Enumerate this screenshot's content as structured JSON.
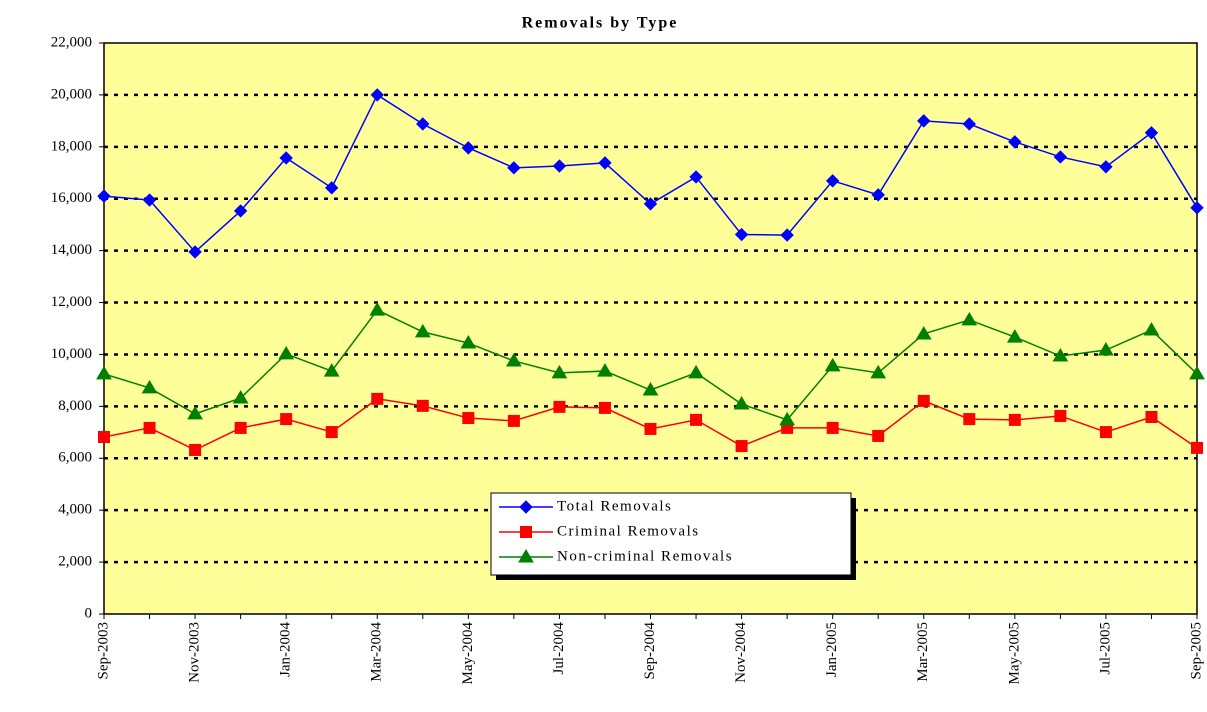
{
  "chart_data": {
    "type": "line",
    "title": "Removals by Type",
    "categories": [
      "Sep-2003",
      null,
      "Nov-2003",
      null,
      "Jan-2004",
      null,
      "Mar-2004",
      null,
      "May-2004",
      null,
      "Jul-2004",
      null,
      "Sep-2004",
      null,
      "Nov-2004",
      null,
      "Jan-2005",
      null,
      "Mar-2005",
      null,
      "May-2005",
      null,
      "Jul-2005",
      null,
      "Sep-2005"
    ],
    "series": [
      {
        "name": "Total Removals",
        "color": "#0000ff",
        "marker": "diamond",
        "values": [
          16100,
          15950,
          13950,
          15530,
          17570,
          16420,
          20000,
          18880,
          17960,
          17190,
          17260,
          17380,
          15800,
          16840,
          14620,
          14600,
          16690,
          16150,
          19000,
          18880,
          18190,
          17610,
          17230,
          18540,
          15650
        ]
      },
      {
        "name": "Criminal Removals",
        "color": "#ff0000",
        "marker": "square",
        "values": [
          6820,
          7170,
          6320,
          7170,
          7510,
          7010,
          8290,
          8020,
          7550,
          7440,
          7980,
          7940,
          7130,
          7480,
          6470,
          7170,
          7170,
          6860,
          8210,
          7510,
          7480,
          7630,
          7010,
          7590,
          6400
        ]
      },
      {
        "name": "Non-criminal Removals",
        "color": "#008000",
        "marker": "triangle",
        "values": [
          9250,
          8710,
          7710,
          8320,
          10020,
          9360,
          11710,
          10870,
          10440,
          9750,
          9290,
          9360,
          8630,
          9290,
          8090,
          7480,
          9560,
          9290,
          10790,
          11330,
          10670,
          9940,
          10170,
          10940,
          9250
        ]
      }
    ],
    "ylim": [
      0,
      22000
    ],
    "yticks": [
      0,
      {
        "value": 2000,
        "label": "2,000"
      },
      {
        "value": 4000,
        "label": "4,000"
      },
      {
        "value": 6000,
        "label": "6,000"
      },
      {
        "value": 8000,
        "label": "8,000"
      },
      {
        "value": 10000,
        "label": "10,000"
      },
      {
        "value": 12000,
        "label": "12,000"
      },
      {
        "value": 14000,
        "label": "14,000"
      },
      {
        "value": 16000,
        "label": "16,000"
      },
      {
        "value": 18000,
        "label": "18,000"
      },
      {
        "value": 20000,
        "label": "20,000"
      },
      {
        "value": 22000,
        "label": "22,000"
      }
    ],
    "grid": true,
    "plot_background": "#ffff99",
    "legend": "lower center"
  }
}
